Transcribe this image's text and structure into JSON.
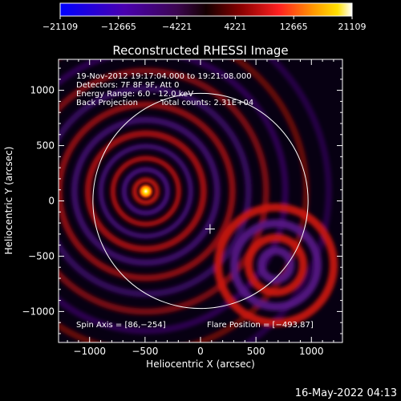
{
  "chart_data": {
    "type": "heatmap",
    "title": "Reconstructed RHESSI Image",
    "xlabel": "Heliocentric X (arcsec)",
    "ylabel": "Heliocentric Y (arcsec)",
    "xlim": [
      -1280,
      1280
    ],
    "ylim": [
      -1280,
      1280
    ],
    "x_ticks": [
      -1000,
      -500,
      0,
      500,
      1000
    ],
    "y_ticks": [
      -1000,
      -500,
      0,
      500,
      1000
    ],
    "x_tick_labels": [
      "−1000",
      "−500",
      "0",
      "500",
      "1000"
    ],
    "y_tick_labels": [
      "−1000",
      "−500",
      "0",
      "500",
      "1000"
    ],
    "colorbar": {
      "min": -21109,
      "max": 21109,
      "tick_labels": [
        "−21109",
        "−12665",
        "−4221",
        "4221",
        "12665",
        "21109"
      ]
    },
    "solar_disk_radius_arcsec": 970,
    "sun_center": [
      0,
      0
    ],
    "spin_axis_marker": [
      86,
      -254
    ],
    "flare_position": [
      -493,
      87
    ],
    "secondary_source": [
      680,
      -580
    ],
    "annotations": {
      "time_range": "19-Nov-2012 19:17:04.000 to 19:21:08.000",
      "detectors": "Detectors: 7F 8F 9F, Att 0",
      "energy": "Energy Range: 6.0 - 12.0 keV",
      "method": "Back Projection",
      "counts": "Total counts: 2.31E+04",
      "spin_axis": "Spin Axis = [86,−254]",
      "flare_position": "Flare Position = [−493,87]"
    },
    "colors": {
      "background": "#000000",
      "colormap": [
        "#0000ff",
        "#3a00c8",
        "#5a0a8c",
        "#3a0640",
        "#1a0000",
        "#7a0000",
        "#e01010",
        "#ff6a00",
        "#ffd000",
        "#ffffff"
      ]
    }
  },
  "footer": {
    "timestamp": "16-May-2022 04:13"
  }
}
